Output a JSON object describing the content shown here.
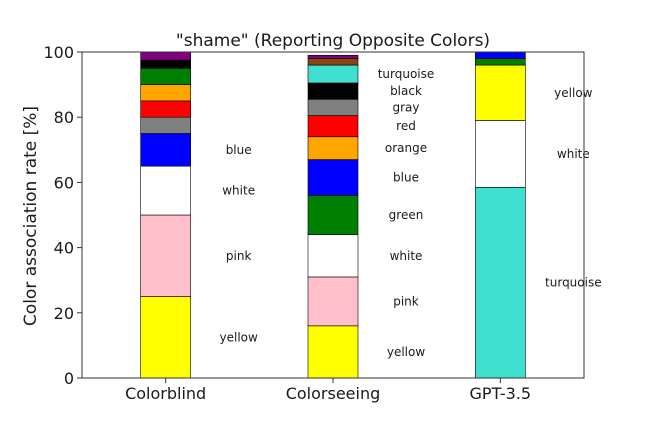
{
  "chart_data": {
    "type": "bar",
    "stacked": true,
    "title": "\"shame\" (Reporting Opposite Colors)",
    "xlabel": "",
    "ylabel": "Color association rate [%]",
    "ylim": [
      0,
      100
    ],
    "yticks": [
      "0",
      "20",
      "40",
      "60",
      "80",
      "100"
    ],
    "grid": false,
    "categories": [
      "Colorblind",
      "Colorseeing",
      "GPT-3.5"
    ],
    "bars": [
      {
        "category": "Colorblind",
        "segments": [
          {
            "color_name": "yellow",
            "value": 25,
            "label": "yellow"
          },
          {
            "color_name": "pink",
            "value": 25,
            "label": "pink"
          },
          {
            "color_name": "white",
            "value": 15,
            "label": "white"
          },
          {
            "color_name": "blue",
            "value": 10,
            "label": "blue"
          },
          {
            "color_name": "gray",
            "value": 5,
            "label": ""
          },
          {
            "color_name": "red",
            "value": 5,
            "label": ""
          },
          {
            "color_name": "orange",
            "value": 5,
            "label": ""
          },
          {
            "color_name": "green",
            "value": 5,
            "label": ""
          },
          {
            "color_name": "black",
            "value": 2.5,
            "label": ""
          },
          {
            "color_name": "purple",
            "value": 2.5,
            "label": ""
          }
        ]
      },
      {
        "category": "Colorseeing",
        "segments": [
          {
            "color_name": "yellow",
            "value": 16,
            "label": "yellow"
          },
          {
            "color_name": "pink",
            "value": 15,
            "label": "pink"
          },
          {
            "color_name": "white",
            "value": 13,
            "label": "white"
          },
          {
            "color_name": "green",
            "value": 12,
            "label": "green"
          },
          {
            "color_name": "blue",
            "value": 11,
            "label": "blue"
          },
          {
            "color_name": "orange",
            "value": 7,
            "label": "orange"
          },
          {
            "color_name": "red",
            "value": 6.5,
            "label": "red"
          },
          {
            "color_name": "gray",
            "value": 5,
            "label": "gray"
          },
          {
            "color_name": "black",
            "value": 5,
            "label": "black"
          },
          {
            "color_name": "turquoise",
            "value": 5.5,
            "label": "turquoise"
          },
          {
            "color_name": "brown",
            "value": 2,
            "label": ""
          },
          {
            "color_name": "purple",
            "value": 1,
            "label": ""
          }
        ]
      },
      {
        "category": "GPT-3.5",
        "segments": [
          {
            "color_name": "turquoise",
            "value": 58.5,
            "label": "turquoise"
          },
          {
            "color_name": "white",
            "value": 20.5,
            "label": "white"
          },
          {
            "color_name": "yellow",
            "value": 17,
            "label": "yellow"
          },
          {
            "color_name": "green",
            "value": 2,
            "label": ""
          },
          {
            "color_name": "blue",
            "value": 2,
            "label": ""
          }
        ]
      }
    ],
    "colors": {
      "yellow": "#ffff00",
      "pink": "#ffc0cb",
      "white": "#ffffff",
      "blue": "#0000ff",
      "gray": "#808080",
      "red": "#ff0000",
      "orange": "#ffa500",
      "green": "#008000",
      "black": "#000000",
      "purple": "#800080",
      "turquoise": "#40e0d0",
      "brown": "#8b4513"
    }
  }
}
